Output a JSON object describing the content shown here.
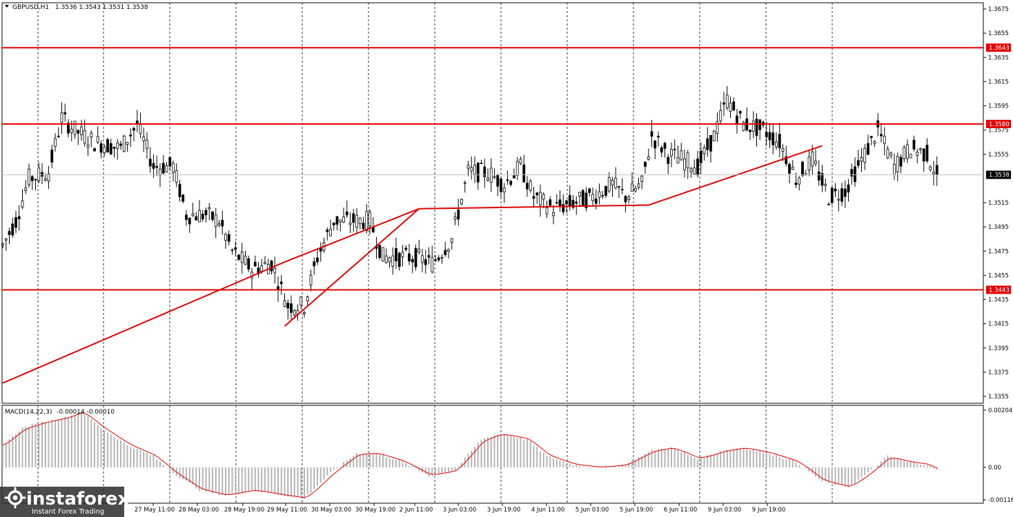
{
  "header": {
    "symbol": "GBPUSD,H1",
    "ohlc": "1.3536 1.3543 1.3531 1.3538"
  },
  "macd_header": {
    "name": "MACD(14,22,3)",
    "values": "-0.00014 -0.00010"
  },
  "watermark": {
    "brand": "instaforex",
    "sub": "Instant Forex Trading"
  },
  "colors": {
    "level": "#e00000",
    "trend": "#e00000",
    "candle": "#000000",
    "macd_signal": "#e00000",
    "macd_hist": "#b4b4b4",
    "grid": "#000000"
  },
  "chart_data": [
    {
      "type": "candlestick",
      "timeframe": "H1",
      "ylim": [
        1.3345,
        1.368
      ],
      "price_ticks": [
        "1.3675",
        "1.3655",
        "1.3635",
        "1.3615",
        "1.3595",
        "1.3575",
        "1.3555",
        "1.3515",
        "1.3495",
        "1.3475",
        "1.3455",
        "1.3435",
        "1.3415",
        "1.3395",
        "1.3375",
        "1.3355"
      ],
      "time_labels": [
        "27 May 11:00",
        "28 May 03:00",
        "28 May 19:00",
        "29 May 11:00",
        "30 May 03:00",
        "30 May 19:00",
        "2 Jun 11:00",
        "3 Jun 03:00",
        "3 Jun 19:00",
        "4 Jun 11:00",
        "5 Jun 03:00",
        "5 Jun 19:00",
        "6 Jun 11:00",
        "9 Jun 03:00",
        "9 Jun 19:00"
      ],
      "levels": [
        {
          "value": 1.3643,
          "label": "1.3643"
        },
        {
          "value": 1.358,
          "label": "1.3580"
        },
        {
          "value": 1.3443,
          "label": "1.3443"
        }
      ],
      "current_price": {
        "value": 1.3538,
        "label": "1.3538"
      },
      "trendlines": [
        {
          "from": {
            "bar": 0,
            "price": 1.3366
          },
          "to": {
            "bar": 86,
            "price": 1.3466
          }
        },
        {
          "from": {
            "bar": 86,
            "price": 1.3466
          },
          "to": {
            "bar": 127,
            "price": 1.351
          }
        },
        {
          "from": {
            "bar": 86,
            "price": 1.3413
          },
          "to": {
            "bar": 127,
            "price": 1.351
          }
        },
        {
          "from": {
            "bar": 127,
            "price": 1.351
          },
          "to": {
            "bar": 197,
            "price": 1.3513
          }
        },
        {
          "from": {
            "bar": 197,
            "price": 1.3513
          },
          "to": {
            "bar": 250,
            "price": 1.3562
          }
        }
      ],
      "anchors": [
        {
          "bar": 0,
          "price": 1.348
        },
        {
          "bar": 4,
          "price": 1.35
        },
        {
          "bar": 8,
          "price": 1.3535
        },
        {
          "bar": 14,
          "price": 1.354
        },
        {
          "bar": 18,
          "price": 1.3585
        },
        {
          "bar": 22,
          "price": 1.3575
        },
        {
          "bar": 28,
          "price": 1.3565
        },
        {
          "bar": 36,
          "price": 1.356
        },
        {
          "bar": 41,
          "price": 1.358
        },
        {
          "bar": 46,
          "price": 1.3545
        },
        {
          "bar": 52,
          "price": 1.3545
        },
        {
          "bar": 56,
          "price": 1.3505
        },
        {
          "bar": 62,
          "price": 1.3505
        },
        {
          "bar": 66,
          "price": 1.35
        },
        {
          "bar": 70,
          "price": 1.3475
        },
        {
          "bar": 76,
          "price": 1.346
        },
        {
          "bar": 82,
          "price": 1.3465
        },
        {
          "bar": 87,
          "price": 1.343
        },
        {
          "bar": 92,
          "price": 1.343
        },
        {
          "bar": 96,
          "price": 1.347
        },
        {
          "bar": 101,
          "price": 1.35
        },
        {
          "bar": 106,
          "price": 1.35
        },
        {
          "bar": 112,
          "price": 1.35
        },
        {
          "bar": 116,
          "price": 1.347
        },
        {
          "bar": 122,
          "price": 1.347
        },
        {
          "bar": 126,
          "price": 1.347
        },
        {
          "bar": 131,
          "price": 1.3465
        },
        {
          "bar": 137,
          "price": 1.3485
        },
        {
          "bar": 142,
          "price": 1.354
        },
        {
          "bar": 148,
          "price": 1.354
        },
        {
          "bar": 153,
          "price": 1.353
        },
        {
          "bar": 158,
          "price": 1.3545
        },
        {
          "bar": 162,
          "price": 1.352
        },
        {
          "bar": 168,
          "price": 1.351
        },
        {
          "bar": 174,
          "price": 1.3515
        },
        {
          "bar": 180,
          "price": 1.352
        },
        {
          "bar": 186,
          "price": 1.353
        },
        {
          "bar": 190,
          "price": 1.352
        },
        {
          "bar": 195,
          "price": 1.353
        },
        {
          "bar": 198,
          "price": 1.357
        },
        {
          "bar": 203,
          "price": 1.3555
        },
        {
          "bar": 208,
          "price": 1.355
        },
        {
          "bar": 212,
          "price": 1.3545
        },
        {
          "bar": 217,
          "price": 1.357
        },
        {
          "bar": 221,
          "price": 1.36
        },
        {
          "bar": 226,
          "price": 1.358
        },
        {
          "bar": 232,
          "price": 1.3575
        },
        {
          "bar": 237,
          "price": 1.3565
        },
        {
          "bar": 242,
          "price": 1.3535
        },
        {
          "bar": 247,
          "price": 1.355
        },
        {
          "bar": 252,
          "price": 1.352
        },
        {
          "bar": 257,
          "price": 1.3525
        },
        {
          "bar": 262,
          "price": 1.355
        },
        {
          "bar": 267,
          "price": 1.3575
        },
        {
          "bar": 272,
          "price": 1.3545
        },
        {
          "bar": 277,
          "price": 1.356
        },
        {
          "bar": 282,
          "price": 1.3555
        },
        {
          "bar": 285,
          "price": 1.3538
        }
      ]
    },
    {
      "type": "histogram+line",
      "name": "MACD(14,22,3)",
      "ylim": [
        -0.0012,
        0.00215
      ],
      "ticks": [
        "0.00204",
        "0.00",
        "-0.00116"
      ],
      "anchors": [
        {
          "bar": 0,
          "value": 0.0008
        },
        {
          "bar": 6,
          "value": 0.0014
        },
        {
          "bar": 12,
          "value": 0.0016
        },
        {
          "bar": 20,
          "value": 0.0018
        },
        {
          "bar": 24,
          "value": 0.002
        },
        {
          "bar": 30,
          "value": 0.0014
        },
        {
          "bar": 38,
          "value": 0.0008
        },
        {
          "bar": 46,
          "value": 0.0004
        },
        {
          "bar": 52,
          "value": -0.0002
        },
        {
          "bar": 60,
          "value": -0.0008
        },
        {
          "bar": 68,
          "value": -0.001
        },
        {
          "bar": 76,
          "value": -0.0008
        },
        {
          "bar": 86,
          "value": -0.001
        },
        {
          "bar": 92,
          "value": -0.0011
        },
        {
          "bar": 100,
          "value": -0.0002
        },
        {
          "bar": 108,
          "value": 0.0005
        },
        {
          "bar": 114,
          "value": 0.0005
        },
        {
          "bar": 122,
          "value": 0.0002
        },
        {
          "bar": 130,
          "value": -0.0003
        },
        {
          "bar": 138,
          "value": -0.0001
        },
        {
          "bar": 146,
          "value": 0.001
        },
        {
          "bar": 152,
          "value": 0.0012
        },
        {
          "bar": 160,
          "value": 0.001
        },
        {
          "bar": 166,
          "value": 0.0004
        },
        {
          "bar": 174,
          "value": 0.0001
        },
        {
          "bar": 182,
          "value": 0.0
        },
        {
          "bar": 190,
          "value": 0.0001
        },
        {
          "bar": 198,
          "value": 0.0006
        },
        {
          "bar": 204,
          "value": 0.0007
        },
        {
          "bar": 212,
          "value": 0.0003
        },
        {
          "bar": 220,
          "value": 0.0006
        },
        {
          "bar": 226,
          "value": 0.0007
        },
        {
          "bar": 234,
          "value": 0.0005
        },
        {
          "bar": 242,
          "value": 0.0002
        },
        {
          "bar": 250,
          "value": -0.0005
        },
        {
          "bar": 258,
          "value": -0.0007
        },
        {
          "bar": 264,
          "value": -0.0002
        },
        {
          "bar": 270,
          "value": 0.0004
        },
        {
          "bar": 276,
          "value": 0.0002
        },
        {
          "bar": 282,
          "value": 0.0001
        },
        {
          "bar": 285,
          "value": -0.0001
        }
      ]
    }
  ]
}
